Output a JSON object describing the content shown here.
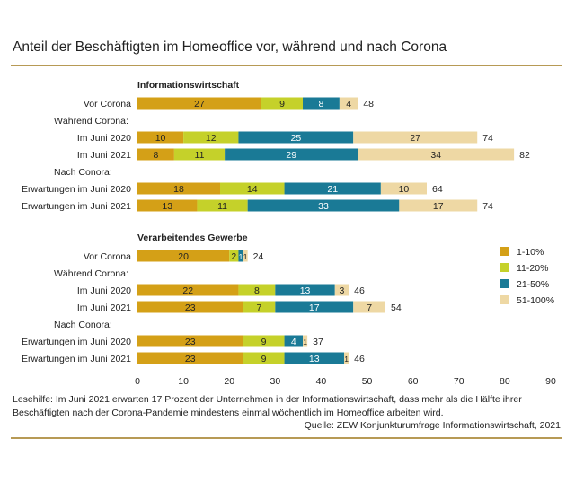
{
  "title": "Anteil der Beschäftigten im Homeoffice vor, während und nach Corona",
  "reading_note": "Lesehilfe: Im Juni 2021 erwarten 17 Prozent der Unternehmen in der Informationswirtschaft, dass mehr als die Hälfte ihrer Beschäftigten nach der Corona-Pandemie mindestens einmal wöchentlich im Homeoffice arbeiten wird.",
  "source": "Quelle: ZEW Konjunkturumfrage Informationswirtschaft, 2021",
  "chart_data": {
    "type": "bar",
    "orientation": "horizontal",
    "stacked": true,
    "xlim": [
      0,
      90
    ],
    "xticks": [
      0,
      10,
      20,
      30,
      40,
      50,
      60,
      70,
      80,
      90
    ],
    "grid": false,
    "legend_position": "right",
    "colors": [
      "#d4a017",
      "#c5d12a",
      "#1a7a96",
      "#eed8a4"
    ],
    "series_names": [
      "1-10%",
      "11-20%",
      "21-50%",
      "51-100%"
    ],
    "groups": [
      {
        "title": "Informationswirtschaft",
        "rows": [
          {
            "label": "Vor Corona",
            "values": [
              27,
              9,
              8,
              4
            ],
            "total": 48
          },
          {
            "heading": "Während Corona:"
          },
          {
            "label": "Im Juni 2020",
            "values": [
              10,
              12,
              25,
              27
            ],
            "total": 74
          },
          {
            "label": "Im Juni 2021",
            "values": [
              8,
              11,
              29,
              34
            ],
            "total": 82
          },
          {
            "heading": "Nach Conora:"
          },
          {
            "label": "Erwartungen im Juni 2020",
            "values": [
              18,
              14,
              21,
              10
            ],
            "total": 64
          },
          {
            "label": "Erwartungen im Juni 2021",
            "values": [
              13,
              11,
              33,
              17
            ],
            "total": 74
          }
        ]
      },
      {
        "title": "Verarbeitendes Gewerbe",
        "rows": [
          {
            "label": "Vor Corona",
            "values": [
              20,
              2,
              1,
              1
            ],
            "total": 24
          },
          {
            "heading": "Während Corona:"
          },
          {
            "label": "Im Juni 2020",
            "values": [
              22,
              8,
              13,
              3
            ],
            "total": 46
          },
          {
            "label": "Im Juni 2021",
            "values": [
              23,
              7,
              17,
              7
            ],
            "total": 54
          },
          {
            "heading": "Nach Conora:"
          },
          {
            "label": "Erwartungen im Juni 2020",
            "values": [
              23,
              9,
              4,
              1
            ],
            "total": 37
          },
          {
            "label": "Erwartungen im Juni 2021",
            "values": [
              23,
              9,
              13,
              1
            ],
            "total": 46
          }
        ]
      }
    ]
  }
}
